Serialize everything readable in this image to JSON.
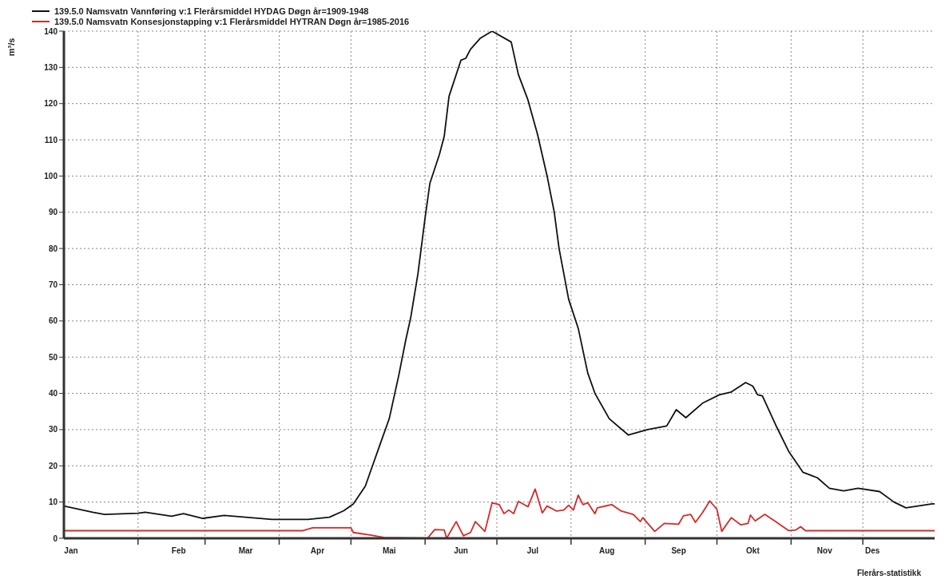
{
  "chart_data": {
    "type": "line",
    "ylabel": "m³/s",
    "annotations": [
      "Flerårs-statistikk"
    ],
    "xlim": [
      "--01-01",
      "--12-31"
    ],
    "xticks": [
      {
        "value": "--01-04",
        "label": "Jan"
      },
      {
        "value": "--02-01",
        "label": null
      },
      {
        "value": "--02-18",
        "label": "Feb"
      },
      {
        "value": "--03-01",
        "label": null
      },
      {
        "value": "--03-18",
        "label": "Mar"
      },
      {
        "value": "--04-01",
        "label": null
      },
      {
        "value": "--04-17",
        "label": "Apr"
      },
      {
        "value": "--05-01",
        "label": null
      },
      {
        "value": "--05-17",
        "label": "Mai"
      },
      {
        "value": "--06-01",
        "label": null
      },
      {
        "value": "--06-16",
        "label": "Jun"
      },
      {
        "value": "--07-01",
        "label": null
      },
      {
        "value": "--07-16",
        "label": "Jul"
      },
      {
        "value": "--08-01",
        "label": null
      },
      {
        "value": "--08-16",
        "label": "Aug"
      },
      {
        "value": "--09-01",
        "label": null
      },
      {
        "value": "--09-15",
        "label": "Sep"
      },
      {
        "value": "--10-01",
        "label": null
      },
      {
        "value": "--10-16",
        "label": "Okt"
      },
      {
        "value": "--11-01",
        "label": null
      },
      {
        "value": "--11-15",
        "label": "Nov"
      },
      {
        "value": "--12-01",
        "label": null
      },
      {
        "value": "--12-05",
        "label": "Des"
      }
    ],
    "ylim": [
      0,
      140
    ],
    "yticks": [
      0,
      10,
      20,
      30,
      40,
      50,
      60,
      70,
      80,
      90,
      100,
      110,
      120,
      130,
      140
    ],
    "grid": true,
    "legend": "top left",
    "line_style": "solid",
    "marker": "none",
    "series": [
      {
        "name": "139.5.0 Namsvatn Vannføring v:1 Flerårsmiddel HYDAG Døgn år=1909-1948",
        "color": "#111111",
        "x": [
          "--01-01",
          "--01-13",
          "--01-18",
          "--02-01",
          "--02-04",
          "--02-15",
          "--02-20",
          "--02-28",
          "--03-09",
          "--03-29",
          "--04-13",
          "--04-22",
          "--04-28",
          "--05-02",
          "--05-07",
          "--05-10",
          "--05-13",
          "--05-17",
          "--05-21",
          "--05-24",
          "--05-26",
          "--05-29",
          "--06-01",
          "--06-03",
          "--06-07",
          "--06-09",
          "--06-11",
          "--06-16",
          "--06-18",
          "--06-20",
          "--06-24",
          "--06-29",
          "--07-07",
          "--07-10",
          "--07-14",
          "--07-18",
          "--07-22",
          "--07-25",
          "--07-27",
          "--07-31",
          "--08-04",
          "--08-08",
          "--08-11",
          "--08-17",
          "--08-25",
          "--09-02",
          "--09-10",
          "--09-14",
          "--09-18",
          "--09-25",
          "--10-02",
          "--10-07",
          "--10-13",
          "--10-16",
          "--10-18",
          "--10-20",
          "--10-26",
          "--10-31",
          "--11-06",
          "--11-12",
          "--11-17",
          "--11-23",
          "--11-29",
          "--12-08",
          "--12-14",
          "--12-19",
          "--12-30",
          "--12-31"
        ],
        "values": [
          8.9,
          7.2,
          6.6,
          6.9,
          7.2,
          6.1,
          6.8,
          5.5,
          6.3,
          5.2,
          5.2,
          5.8,
          7.6,
          9.5,
          14.4,
          20,
          25.6,
          33,
          45,
          55,
          61,
          73,
          88.5,
          98,
          106,
          111,
          122,
          132,
          132.5,
          135,
          138,
          140,
          137,
          128,
          121,
          111.5,
          100,
          90,
          80,
          66,
          58,
          45.6,
          40,
          33,
          28.5,
          30,
          31,
          35.5,
          33.3,
          37.3,
          39.6,
          40.4,
          43,
          42,
          39.6,
          39.3,
          30.7,
          24,
          18.2,
          16.7,
          13.8,
          13.1,
          13.8,
          12.9,
          10,
          8.4,
          9.5,
          9.5
        ]
      },
      {
        "name": "139.5.0 Namsvatn Konsesjonstapping v:1 Flerårsmiddel HYTRAN Døgn år=1985-2016",
        "color": "#d42a2a",
        "x": [
          "--01-01",
          "--04-11",
          "--04-15",
          "--05-01",
          "--05-02",
          "--05-10",
          "--05-15",
          "--06-02",
          "--06-05",
          "--06-09",
          "--06-10",
          "--06-14",
          "--06-17",
          "--06-20",
          "--06-22",
          "--06-26",
          "--06-29",
          "--07-02",
          "--07-04",
          "--07-06",
          "--07-08",
          "--07-10",
          "--07-14",
          "--07-17",
          "--07-20",
          "--07-22",
          "--07-26",
          "--07-29",
          "--07-31",
          "--08-02",
          "--08-04",
          "--08-06",
          "--08-08",
          "--08-11",
          "--08-12",
          "--08-18",
          "--08-22",
          "--08-27",
          "--08-30",
          "--08-31",
          "--09-05",
          "--09-09",
          "--09-15",
          "--09-17",
          "--09-20",
          "--09-22",
          "--09-25",
          "--09-28",
          "--10-01",
          "--10-03",
          "--10-07",
          "--10-11",
          "--10-14",
          "--10-15",
          "--10-17",
          "--10-21",
          "--10-26",
          "--10-31",
          "--11-03",
          "--11-05",
          "--11-07",
          "--12-31"
        ],
        "values": [
          2.1,
          2.1,
          2.9,
          2.9,
          1.6,
          0.8,
          0.2,
          0,
          2.4,
          2.3,
          0,
          4.6,
          0.7,
          1.6,
          4.6,
          1.9,
          9.8,
          9.3,
          6.8,
          7.8,
          6.8,
          10.2,
          8.7,
          13.6,
          7,
          8.9,
          7.5,
          7.8,
          9.1,
          7.8,
          11.9,
          9.3,
          9.8,
          6.8,
          8.4,
          9.3,
          7.5,
          6.6,
          4.6,
          5.7,
          1.9,
          4.1,
          3.9,
          6.2,
          6.6,
          4.4,
          7.1,
          10.3,
          8,
          1.9,
          5.7,
          3.7,
          4.1,
          6.4,
          4.8,
          6.6,
          4.4,
          2.1,
          2.3,
          3.2,
          2.1,
          2.1
        ]
      }
    ]
  }
}
